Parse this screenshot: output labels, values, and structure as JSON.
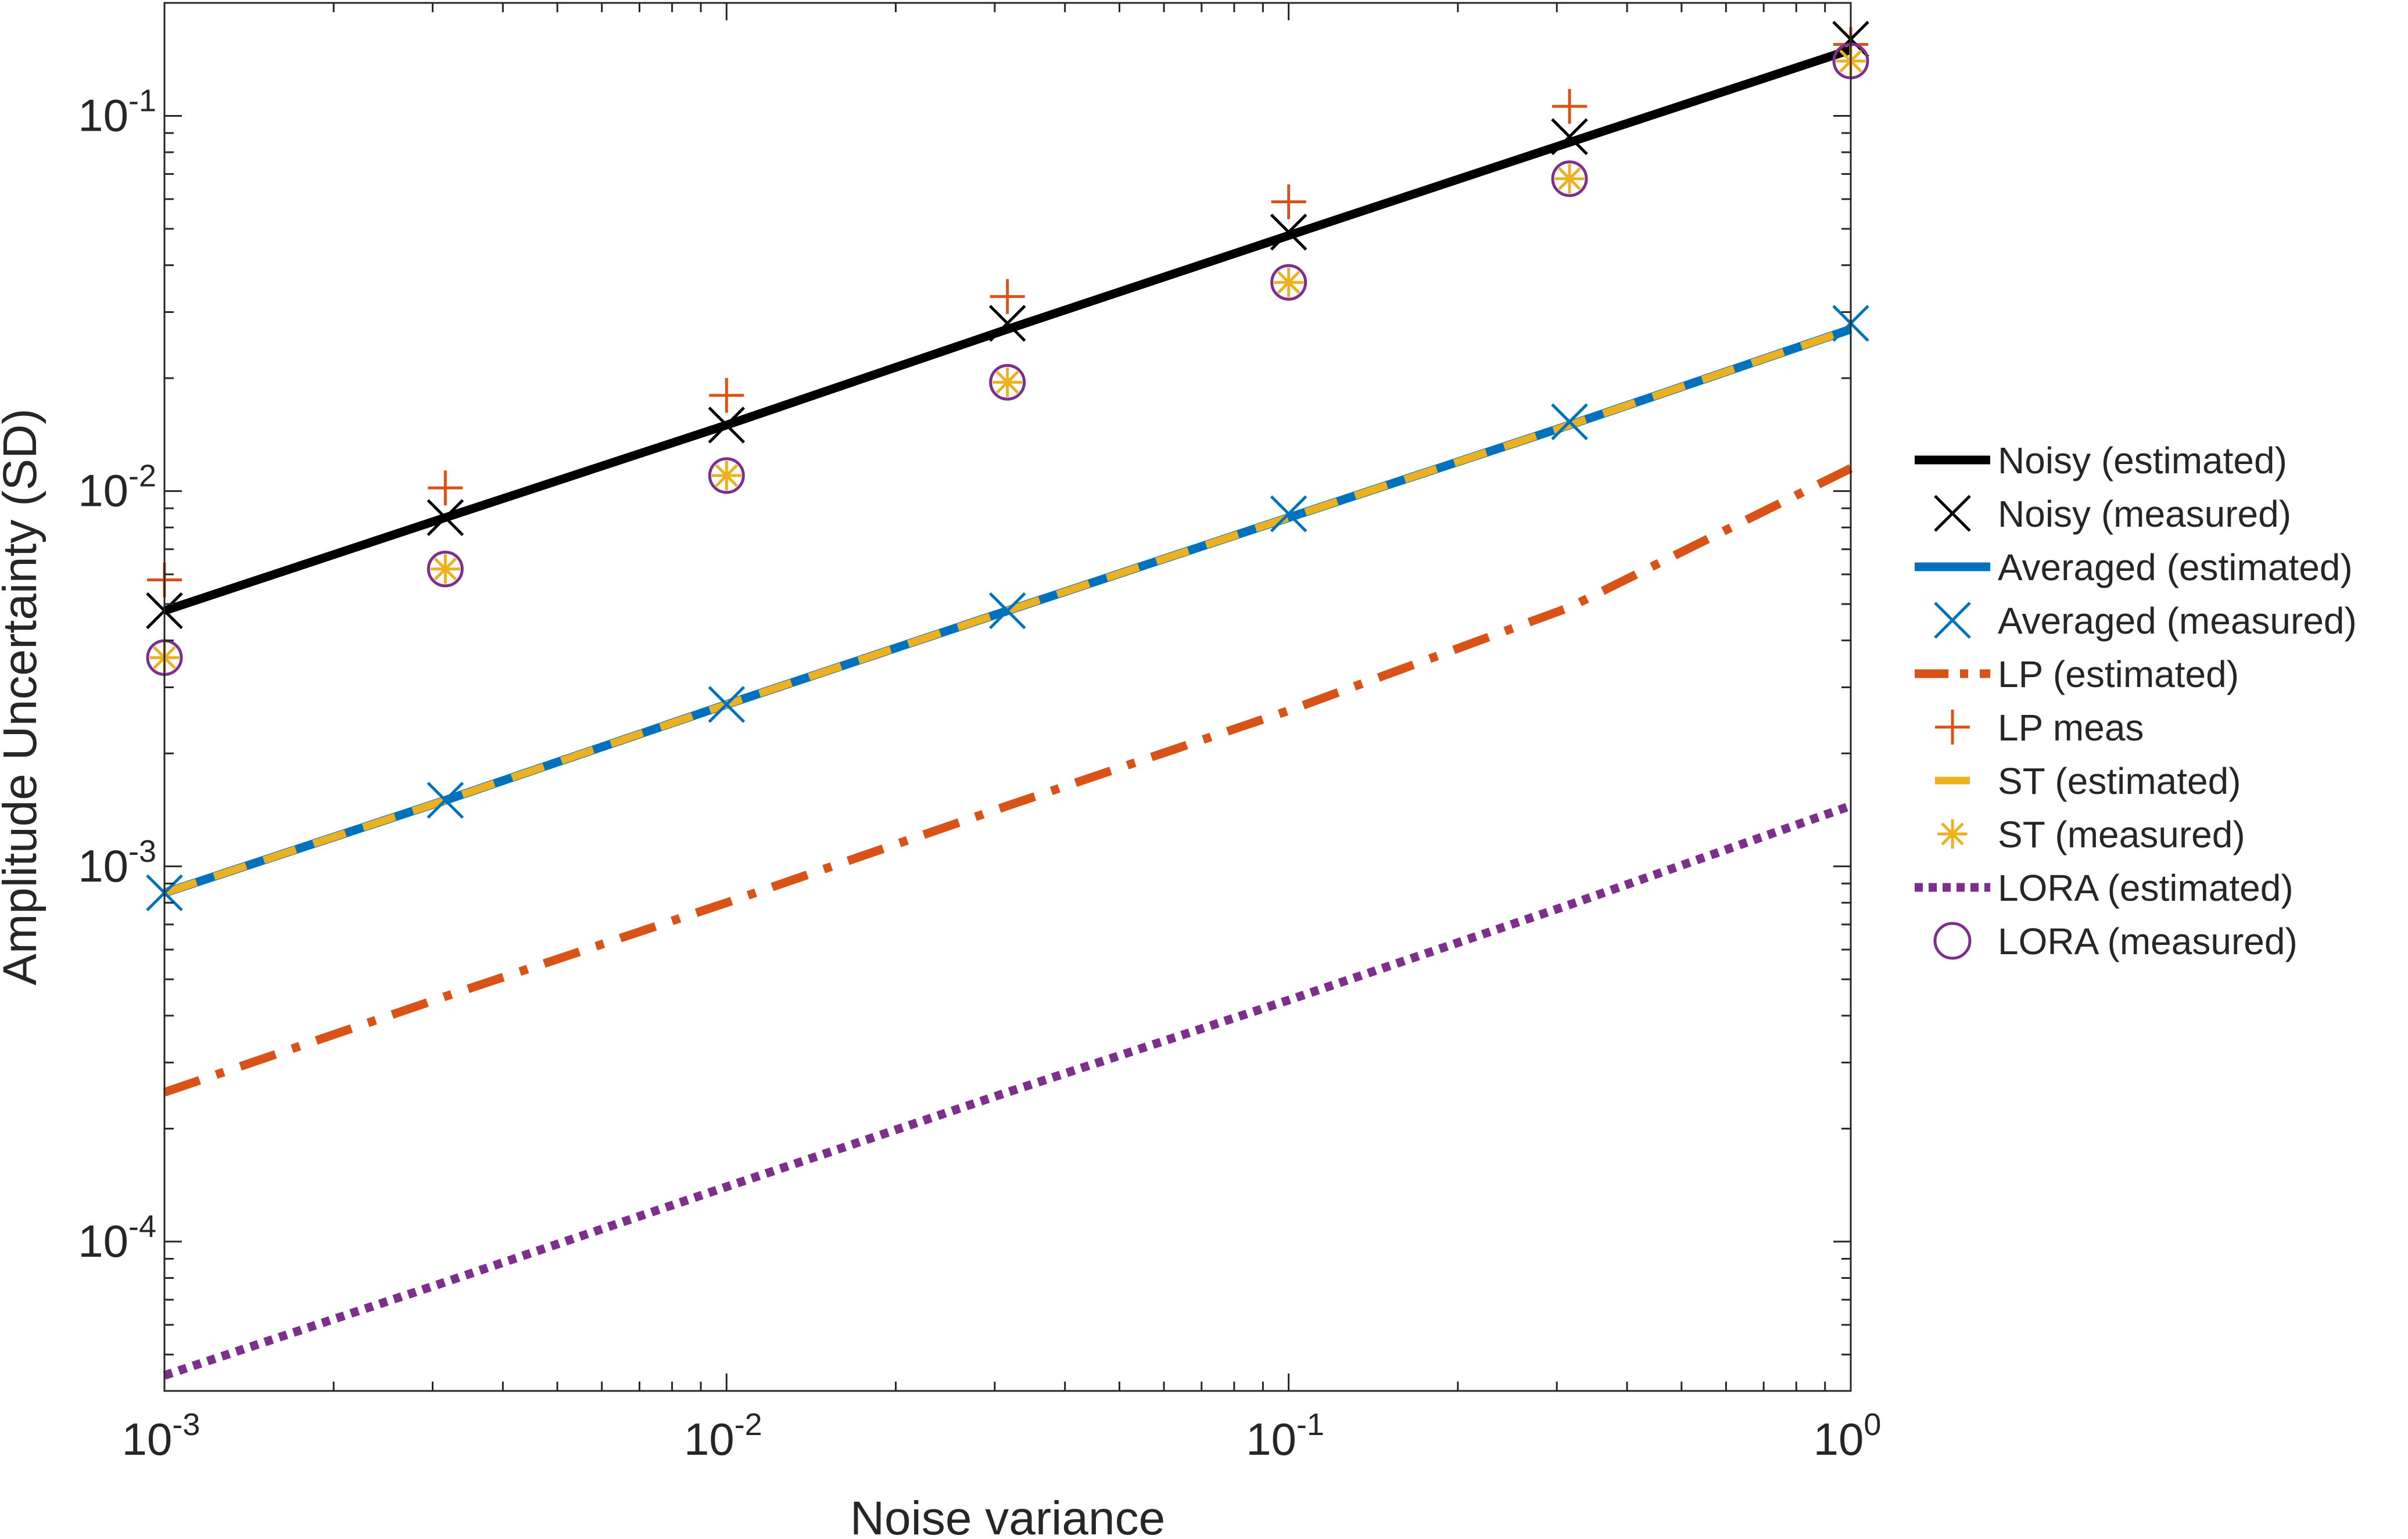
{
  "chart_data": {
    "type": "line",
    "title": "",
    "xlabel": "Noise variance",
    "ylabel": "Amplitude Uncertainty (SD)",
    "xscale": "log",
    "yscale": "log",
    "xlim": [
      0.001,
      1
    ],
    "ylim": [
      4e-05,
      0.2
    ],
    "grid": false,
    "legend_position": "right-outside",
    "x_ticks": [
      {
        "base": "10",
        "exp": "-3",
        "value": 0.001
      },
      {
        "base": "10",
        "exp": "-2",
        "value": 0.01
      },
      {
        "base": "10",
        "exp": "-1",
        "value": 0.1
      },
      {
        "base": "10",
        "exp": "0",
        "value": 1
      }
    ],
    "y_ticks": [
      {
        "base": "10",
        "exp": "-4",
        "value": 0.0001
      },
      {
        "base": "10",
        "exp": "-3",
        "value": 0.001
      },
      {
        "base": "10",
        "exp": "-2",
        "value": 0.01
      },
      {
        "base": "10",
        "exp": "-1",
        "value": 0.1
      }
    ],
    "x": [
      0.001,
      0.00316,
      0.01,
      0.0316,
      0.1,
      0.316,
      1
    ],
    "series": [
      {
        "name": "Noisy (estimated)",
        "kind": "line",
        "dash": "solid",
        "color": "#000000",
        "values": [
          0.0048,
          0.0085,
          0.015,
          0.027,
          0.048,
          0.085,
          0.15
        ]
      },
      {
        "name": "Noisy (measured)",
        "kind": "marker",
        "marker": "x",
        "color": "#000000",
        "values": [
          0.0048,
          0.0085,
          0.015,
          0.028,
          0.049,
          0.088,
          0.16
        ]
      },
      {
        "name": "Averaged (estimated)",
        "kind": "line",
        "dash": "solid",
        "color": "#0072BD",
        "values": [
          0.00085,
          0.0015,
          0.0027,
          0.0048,
          0.0085,
          0.015,
          0.027
        ]
      },
      {
        "name": "Averaged (measured)",
        "kind": "marker",
        "marker": "x",
        "color": "#0072BD",
        "values": [
          0.00085,
          0.0015,
          0.0027,
          0.0048,
          0.0087,
          0.0153,
          0.028
        ]
      },
      {
        "name": "LP (estimated)",
        "kind": "line",
        "dash": "dashdot",
        "color": "#D95319",
        "values": [
          0.00025,
          0.00045,
          0.0008,
          0.00145,
          0.0026,
          0.0049,
          0.0115
        ]
      },
      {
        "name": "LP meas",
        "kind": "marker",
        "marker": "+",
        "color": "#D95319",
        "values": [
          0.0058,
          0.0102,
          0.018,
          0.033,
          0.059,
          0.106,
          0.155
        ]
      },
      {
        "name": "ST (estimated)",
        "kind": "line",
        "dash": "dashed",
        "color": "#EDB120",
        "values": [
          0.00085,
          0.0015,
          0.0027,
          0.0048,
          0.0085,
          0.015,
          0.027
        ]
      },
      {
        "name": "ST (measured)",
        "kind": "marker",
        "marker": "asterisk",
        "color": "#EDB120",
        "values": [
          0.0036,
          0.0062,
          0.011,
          0.0195,
          0.036,
          0.068,
          0.14
        ]
      },
      {
        "name": "LORA (estimated)",
        "kind": "line",
        "dash": "dotted",
        "color": "#7E2F8E",
        "values": [
          4.4e-05,
          7.8e-05,
          0.00014,
          0.00025,
          0.00044,
          0.00079,
          0.00145
        ]
      },
      {
        "name": "LORA (measured)",
        "kind": "marker",
        "marker": "circle",
        "color": "#7E2F8E",
        "values": [
          0.0036,
          0.0062,
          0.011,
          0.0195,
          0.036,
          0.068,
          0.14
        ]
      }
    ]
  }
}
